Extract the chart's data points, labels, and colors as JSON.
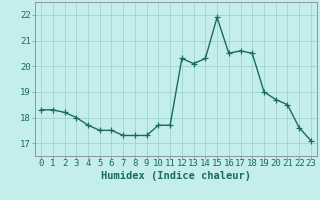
{
  "x": [
    0,
    1,
    2,
    3,
    4,
    5,
    6,
    7,
    8,
    9,
    10,
    11,
    12,
    13,
    14,
    15,
    16,
    17,
    18,
    19,
    20,
    21,
    22,
    23
  ],
  "y": [
    18.3,
    18.3,
    18.2,
    18.0,
    17.7,
    17.5,
    17.5,
    17.3,
    17.3,
    17.3,
    17.7,
    17.7,
    20.3,
    20.1,
    20.3,
    21.9,
    20.5,
    20.6,
    20.5,
    19.0,
    18.7,
    18.5,
    17.6,
    17.1
  ],
  "line_color": "#1a6b5a",
  "bg_color": "#c4eeec",
  "grid_color": "#9dd4d0",
  "axis_color": "#888888",
  "xlabel": "Humidex (Indice chaleur)",
  "ylim": [
    16.5,
    22.5
  ],
  "xlim": [
    -0.5,
    23.5
  ],
  "yticks": [
    17,
    18,
    19,
    20,
    21,
    22
  ],
  "xticks": [
    0,
    1,
    2,
    3,
    4,
    5,
    6,
    7,
    8,
    9,
    10,
    11,
    12,
    13,
    14,
    15,
    16,
    17,
    18,
    19,
    20,
    21,
    22,
    23
  ],
  "marker": "+",
  "markersize": 4,
  "linewidth": 1.0,
  "xlabel_fontsize": 7.5,
  "tick_fontsize": 6.5
}
